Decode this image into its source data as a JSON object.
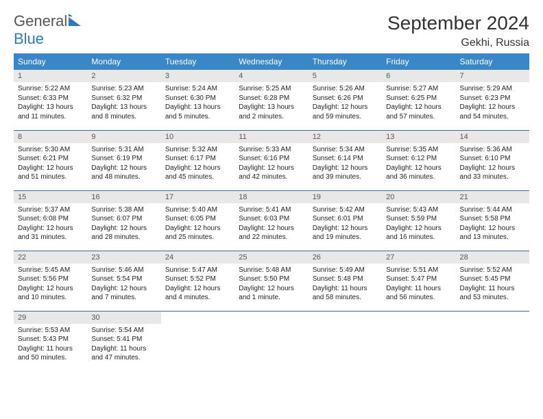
{
  "brand": {
    "name_part1": "General",
    "name_part2": "Blue"
  },
  "title": "September 2024",
  "location": "Gekhi, Russia",
  "colors": {
    "header_bg": "#3a87c8",
    "header_text": "#ffffff",
    "daynum_bg": "#e8e8e8",
    "daynum_text": "#555555",
    "row_border": "#2a6ea8",
    "body_text": "#222222",
    "title_text": "#333333",
    "brand_gray": "#555555",
    "brand_blue": "#2a7bbf",
    "background": "#ffffff"
  },
  "typography": {
    "title_fontsize": 28,
    "location_fontsize": 16,
    "weekday_fontsize": 12,
    "daynum_fontsize": 11,
    "meta_fontsize": 10
  },
  "weekdays": [
    "Sunday",
    "Monday",
    "Tuesday",
    "Wednesday",
    "Thursday",
    "Friday",
    "Saturday"
  ],
  "weeks": [
    [
      {
        "n": "1",
        "sunrise": "Sunrise: 5:22 AM",
        "sunset": "Sunset: 6:33 PM",
        "day": "Daylight: 13 hours and 11 minutes."
      },
      {
        "n": "2",
        "sunrise": "Sunrise: 5:23 AM",
        "sunset": "Sunset: 6:32 PM",
        "day": "Daylight: 13 hours and 8 minutes."
      },
      {
        "n": "3",
        "sunrise": "Sunrise: 5:24 AM",
        "sunset": "Sunset: 6:30 PM",
        "day": "Daylight: 13 hours and 5 minutes."
      },
      {
        "n": "4",
        "sunrise": "Sunrise: 5:25 AM",
        "sunset": "Sunset: 6:28 PM",
        "day": "Daylight: 13 hours and 2 minutes."
      },
      {
        "n": "5",
        "sunrise": "Sunrise: 5:26 AM",
        "sunset": "Sunset: 6:26 PM",
        "day": "Daylight: 12 hours and 59 minutes."
      },
      {
        "n": "6",
        "sunrise": "Sunrise: 5:27 AM",
        "sunset": "Sunset: 6:25 PM",
        "day": "Daylight: 12 hours and 57 minutes."
      },
      {
        "n": "7",
        "sunrise": "Sunrise: 5:29 AM",
        "sunset": "Sunset: 6:23 PM",
        "day": "Daylight: 12 hours and 54 minutes."
      }
    ],
    [
      {
        "n": "8",
        "sunrise": "Sunrise: 5:30 AM",
        "sunset": "Sunset: 6:21 PM",
        "day": "Daylight: 12 hours and 51 minutes."
      },
      {
        "n": "9",
        "sunrise": "Sunrise: 5:31 AM",
        "sunset": "Sunset: 6:19 PM",
        "day": "Daylight: 12 hours and 48 minutes."
      },
      {
        "n": "10",
        "sunrise": "Sunrise: 5:32 AM",
        "sunset": "Sunset: 6:17 PM",
        "day": "Daylight: 12 hours and 45 minutes."
      },
      {
        "n": "11",
        "sunrise": "Sunrise: 5:33 AM",
        "sunset": "Sunset: 6:16 PM",
        "day": "Daylight: 12 hours and 42 minutes."
      },
      {
        "n": "12",
        "sunrise": "Sunrise: 5:34 AM",
        "sunset": "Sunset: 6:14 PM",
        "day": "Daylight: 12 hours and 39 minutes."
      },
      {
        "n": "13",
        "sunrise": "Sunrise: 5:35 AM",
        "sunset": "Sunset: 6:12 PM",
        "day": "Daylight: 12 hours and 36 minutes."
      },
      {
        "n": "14",
        "sunrise": "Sunrise: 5:36 AM",
        "sunset": "Sunset: 6:10 PM",
        "day": "Daylight: 12 hours and 33 minutes."
      }
    ],
    [
      {
        "n": "15",
        "sunrise": "Sunrise: 5:37 AM",
        "sunset": "Sunset: 6:08 PM",
        "day": "Daylight: 12 hours and 31 minutes."
      },
      {
        "n": "16",
        "sunrise": "Sunrise: 5:38 AM",
        "sunset": "Sunset: 6:07 PM",
        "day": "Daylight: 12 hours and 28 minutes."
      },
      {
        "n": "17",
        "sunrise": "Sunrise: 5:40 AM",
        "sunset": "Sunset: 6:05 PM",
        "day": "Daylight: 12 hours and 25 minutes."
      },
      {
        "n": "18",
        "sunrise": "Sunrise: 5:41 AM",
        "sunset": "Sunset: 6:03 PM",
        "day": "Daylight: 12 hours and 22 minutes."
      },
      {
        "n": "19",
        "sunrise": "Sunrise: 5:42 AM",
        "sunset": "Sunset: 6:01 PM",
        "day": "Daylight: 12 hours and 19 minutes."
      },
      {
        "n": "20",
        "sunrise": "Sunrise: 5:43 AM",
        "sunset": "Sunset: 5:59 PM",
        "day": "Daylight: 12 hours and 16 minutes."
      },
      {
        "n": "21",
        "sunrise": "Sunrise: 5:44 AM",
        "sunset": "Sunset: 5:58 PM",
        "day": "Daylight: 12 hours and 13 minutes."
      }
    ],
    [
      {
        "n": "22",
        "sunrise": "Sunrise: 5:45 AM",
        "sunset": "Sunset: 5:56 PM",
        "day": "Daylight: 12 hours and 10 minutes."
      },
      {
        "n": "23",
        "sunrise": "Sunrise: 5:46 AM",
        "sunset": "Sunset: 5:54 PM",
        "day": "Daylight: 12 hours and 7 minutes."
      },
      {
        "n": "24",
        "sunrise": "Sunrise: 5:47 AM",
        "sunset": "Sunset: 5:52 PM",
        "day": "Daylight: 12 hours and 4 minutes."
      },
      {
        "n": "25",
        "sunrise": "Sunrise: 5:48 AM",
        "sunset": "Sunset: 5:50 PM",
        "day": "Daylight: 12 hours and 1 minute."
      },
      {
        "n": "26",
        "sunrise": "Sunrise: 5:49 AM",
        "sunset": "Sunset: 5:48 PM",
        "day": "Daylight: 11 hours and 58 minutes."
      },
      {
        "n": "27",
        "sunrise": "Sunrise: 5:51 AM",
        "sunset": "Sunset: 5:47 PM",
        "day": "Daylight: 11 hours and 56 minutes."
      },
      {
        "n": "28",
        "sunrise": "Sunrise: 5:52 AM",
        "sunset": "Sunset: 5:45 PM",
        "day": "Daylight: 11 hours and 53 minutes."
      }
    ],
    [
      {
        "n": "29",
        "sunrise": "Sunrise: 5:53 AM",
        "sunset": "Sunset: 5:43 PM",
        "day": "Daylight: 11 hours and 50 minutes."
      },
      {
        "n": "30",
        "sunrise": "Sunrise: 5:54 AM",
        "sunset": "Sunset: 5:41 PM",
        "day": "Daylight: 11 hours and 47 minutes."
      },
      null,
      null,
      null,
      null,
      null
    ]
  ]
}
